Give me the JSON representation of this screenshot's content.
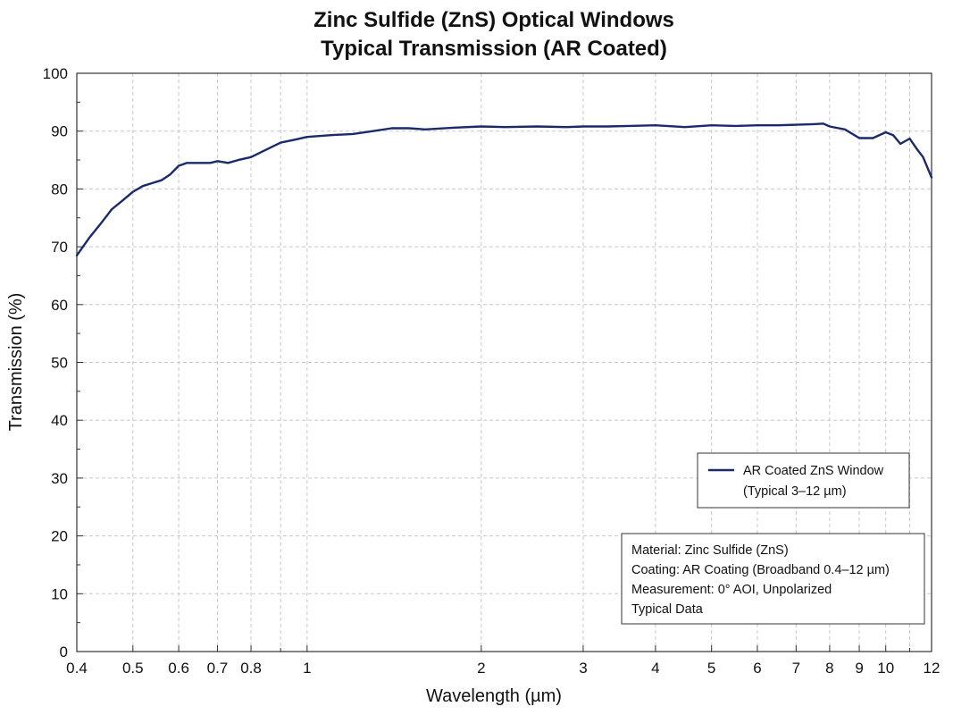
{
  "chart_data": {
    "type": "line",
    "title": "Zinc Sulfide (ZnS) Optical Windows",
    "subtitle": "Typical Transmission (AR Coated)",
    "xlabel": "Wavelength (µm)",
    "ylabel": "Transmission (%)",
    "xscale": "log",
    "xlim": [
      0.4,
      12
    ],
    "ylim": [
      0,
      100
    ],
    "grid": true,
    "x_ticks": [
      0.4,
      0.5,
      0.6,
      0.7,
      0.8,
      1,
      2,
      3,
      4,
      5,
      6,
      7,
      8,
      9,
      10,
      12
    ],
    "x_tick_labels": [
      "0.4",
      "0.5",
      "0.6",
      "0.7",
      "0.8",
      "1",
      "2",
      "3",
      "4",
      "5",
      "6",
      "7",
      "8",
      "9",
      "10",
      "12"
    ],
    "y_ticks": [
      0,
      10,
      20,
      30,
      40,
      50,
      60,
      70,
      80,
      90,
      100
    ],
    "y_tick_labels": [
      "0",
      "10",
      "20",
      "30",
      "40",
      "50",
      "60",
      "70",
      "80",
      "90",
      "100"
    ],
    "legend_position": "lower-right",
    "series": [
      {
        "name": "AR Coated ZnS Window",
        "name_line2": "(Typical 3–12 µm)",
        "color": "#1c2a6b",
        "x": [
          0.4,
          0.42,
          0.44,
          0.46,
          0.48,
          0.5,
          0.52,
          0.54,
          0.56,
          0.58,
          0.6,
          0.62,
          0.65,
          0.68,
          0.7,
          0.73,
          0.76,
          0.8,
          0.85,
          0.9,
          0.95,
          1.0,
          1.1,
          1.2,
          1.3,
          1.4,
          1.5,
          1.6,
          1.8,
          2.0,
          2.2,
          2.5,
          2.8,
          3.0,
          3.3,
          3.6,
          4.0,
          4.5,
          5.0,
          5.5,
          6.0,
          6.5,
          7.0,
          7.5,
          7.8,
          8.0,
          8.5,
          9.0,
          9.5,
          10.0,
          10.3,
          10.6,
          11.0,
          11.3,
          11.6,
          12.0
        ],
        "y": [
          68.5,
          71.5,
          74.0,
          76.5,
          78.0,
          79.5,
          80.5,
          81.0,
          81.5,
          82.5,
          84.0,
          84.5,
          84.5,
          84.5,
          84.8,
          84.5,
          85.0,
          85.5,
          86.8,
          88.0,
          88.5,
          89.0,
          89.3,
          89.5,
          90.0,
          90.5,
          90.5,
          90.3,
          90.6,
          90.8,
          90.7,
          90.8,
          90.7,
          90.8,
          90.8,
          90.9,
          91.0,
          90.7,
          91.0,
          90.9,
          91.0,
          91.0,
          91.1,
          91.2,
          91.3,
          90.8,
          90.3,
          88.8,
          88.8,
          89.8,
          89.3,
          87.8,
          88.7,
          87.0,
          85.5,
          82.0
        ]
      }
    ],
    "annotation_lines": [
      "Material: Zinc Sulfide (ZnS)",
      "Coating: AR Coating (Broadband 0.4–12 µm)",
      "Measurement: 0° AOI, Unpolarized",
      "Typical Data"
    ]
  }
}
